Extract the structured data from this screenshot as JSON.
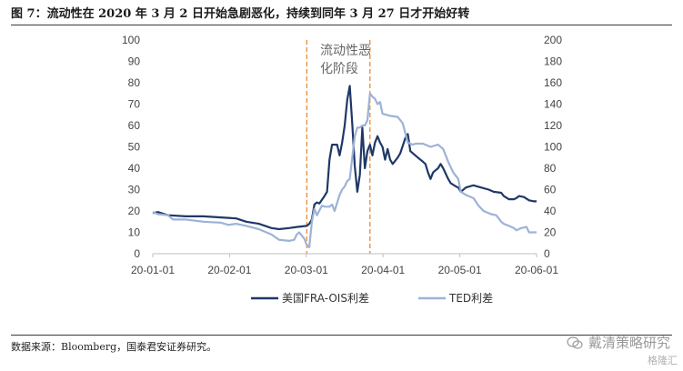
{
  "figure": {
    "title": "图 7：流动性在 2020 年 3 月 2 日开始急剧恶化，持续到同年 3 月 27 日才开始好转",
    "source": "数据来源：Bloomberg，国泰君安证券研究。",
    "watermark": "戴清策略研究",
    "watermark_sub": "格隆汇"
  },
  "chart_data": {
    "type": "line",
    "title": "",
    "xlabel": "",
    "ylabel_left": "",
    "ylabel_right": "",
    "x_ticks": [
      "20-01-01",
      "20-02-01",
      "20-03-01",
      "20-04-01",
      "20-05-01",
      "20-06-01"
    ],
    "x_range": [
      "2020-01-01",
      "2020-06-01"
    ],
    "y_left": {
      "min": 0,
      "max": 100,
      "ticks": [
        0,
        10,
        20,
        30,
        40,
        50,
        60,
        70,
        80,
        90,
        100
      ]
    },
    "y_right": {
      "min": 0,
      "max": 200,
      "ticks": [
        0,
        20,
        40,
        60,
        80,
        100,
        120,
        140,
        160,
        180,
        200
      ]
    },
    "legend_position": "bottom",
    "annotation": {
      "lines": [
        "流动性恶",
        "化阶段"
      ]
    },
    "vlines": [
      {
        "date": "2020-03-02",
        "color": "#f0913a"
      },
      {
        "date": "2020-03-27",
        "color": "#f0913a"
      }
    ],
    "series": [
      {
        "name": "美国FRA-OIS利差",
        "axis": "left",
        "color": "#1f3867",
        "points": [
          [
            "2020-01-01",
            19
          ],
          [
            "2020-01-03",
            19.5
          ],
          [
            "2020-01-07",
            18
          ],
          [
            "2020-01-14",
            17.5
          ],
          [
            "2020-01-21",
            17.5
          ],
          [
            "2020-01-28",
            17
          ],
          [
            "2020-02-03",
            16.5
          ],
          [
            "2020-02-07",
            15
          ],
          [
            "2020-02-12",
            14
          ],
          [
            "2020-02-17",
            12
          ],
          [
            "2020-02-20",
            11.5
          ],
          [
            "2020-02-24",
            12
          ],
          [
            "2020-02-27",
            12.5
          ],
          [
            "2020-03-02",
            13
          ],
          [
            "2020-03-03",
            14
          ],
          [
            "2020-03-04",
            16
          ],
          [
            "2020-03-05",
            23
          ],
          [
            "2020-03-06",
            24
          ],
          [
            "2020-03-07",
            23.5
          ],
          [
            "2020-03-09",
            27
          ],
          [
            "2020-03-10",
            29
          ],
          [
            "2020-03-11",
            44
          ],
          [
            "2020-03-12",
            51
          ],
          [
            "2020-03-13",
            51
          ],
          [
            "2020-03-14",
            51
          ],
          [
            "2020-03-15",
            46
          ],
          [
            "2020-03-16",
            52
          ],
          [
            "2020-03-17",
            60
          ],
          [
            "2020-03-18",
            72
          ],
          [
            "2020-03-19",
            78.5
          ],
          [
            "2020-03-20",
            61
          ],
          [
            "2020-03-21",
            41
          ],
          [
            "2020-03-22",
            29
          ],
          [
            "2020-03-23",
            37
          ],
          [
            "2020-03-24",
            59
          ],
          [
            "2020-03-25",
            40
          ],
          [
            "2020-03-26",
            48
          ],
          [
            "2020-03-27",
            51
          ],
          [
            "2020-03-28",
            46
          ],
          [
            "2020-03-29",
            52
          ],
          [
            "2020-03-30",
            55
          ],
          [
            "2020-03-31",
            52
          ],
          [
            "2020-04-01",
            50
          ],
          [
            "2020-04-02",
            44
          ],
          [
            "2020-04-03",
            49
          ],
          [
            "2020-04-04",
            44
          ],
          [
            "2020-04-05",
            42
          ],
          [
            "2020-04-07",
            45
          ],
          [
            "2020-04-08",
            47
          ],
          [
            "2020-04-10",
            54
          ],
          [
            "2020-04-11",
            56
          ],
          [
            "2020-04-12",
            48
          ],
          [
            "2020-04-14",
            46
          ],
          [
            "2020-04-15",
            45
          ],
          [
            "2020-04-17",
            43
          ],
          [
            "2020-04-18",
            42
          ],
          [
            "2020-04-19",
            38
          ],
          [
            "2020-04-20",
            35
          ],
          [
            "2020-04-21",
            38
          ],
          [
            "2020-04-22",
            39
          ],
          [
            "2020-04-23",
            40
          ],
          [
            "2020-04-24",
            42
          ],
          [
            "2020-04-25",
            40
          ],
          [
            "2020-04-27",
            35
          ],
          [
            "2020-04-28",
            33
          ],
          [
            "2020-04-30",
            31.5
          ],
          [
            "2020-05-01",
            31
          ],
          [
            "2020-05-02",
            29
          ],
          [
            "2020-05-04",
            31
          ],
          [
            "2020-05-07",
            32
          ],
          [
            "2020-05-10",
            31
          ],
          [
            "2020-05-13",
            30
          ],
          [
            "2020-05-15",
            29
          ],
          [
            "2020-05-18",
            28.5
          ],
          [
            "2020-05-19",
            27
          ],
          [
            "2020-05-21",
            25.5
          ],
          [
            "2020-05-23",
            25.5
          ],
          [
            "2020-05-24",
            26
          ],
          [
            "2020-05-25",
            27
          ],
          [
            "2020-05-27",
            26.5
          ],
          [
            "2020-05-29",
            25
          ],
          [
            "2020-05-31",
            24.5
          ],
          [
            "2020-06-01",
            24.5
          ]
        ]
      },
      {
        "name": "TED利差",
        "axis": "right",
        "color": "#9db2d6",
        "points": [
          [
            "2020-01-01",
            39
          ],
          [
            "2020-01-03",
            37
          ],
          [
            "2020-01-07",
            36
          ],
          [
            "2020-01-09",
            32
          ],
          [
            "2020-01-14",
            32
          ],
          [
            "2020-01-21",
            30
          ],
          [
            "2020-01-28",
            29
          ],
          [
            "2020-01-31",
            27
          ],
          [
            "2020-02-03",
            28
          ],
          [
            "2020-02-07",
            26
          ],
          [
            "2020-02-12",
            23
          ],
          [
            "2020-02-17",
            18
          ],
          [
            "2020-02-20",
            13
          ],
          [
            "2020-02-24",
            12
          ],
          [
            "2020-02-26",
            13
          ],
          [
            "2020-02-27",
            18
          ],
          [
            "2020-02-28",
            20
          ],
          [
            "2020-03-01",
            14
          ],
          [
            "2020-03-02",
            8
          ],
          [
            "2020-03-03",
            6
          ],
          [
            "2020-03-04",
            30
          ],
          [
            "2020-03-05",
            42
          ],
          [
            "2020-03-06",
            36
          ],
          [
            "2020-03-08",
            45
          ],
          [
            "2020-03-09",
            44
          ],
          [
            "2020-03-11",
            44
          ],
          [
            "2020-03-12",
            46
          ],
          [
            "2020-03-13",
            40
          ],
          [
            "2020-03-15",
            55
          ],
          [
            "2020-03-16",
            60
          ],
          [
            "2020-03-17",
            63
          ],
          [
            "2020-03-18",
            68
          ],
          [
            "2020-03-19",
            70
          ],
          [
            "2020-03-20",
            90
          ],
          [
            "2020-03-21",
            110
          ],
          [
            "2020-03-22",
            118
          ],
          [
            "2020-03-23",
            118
          ],
          [
            "2020-03-24",
            120
          ],
          [
            "2020-03-25",
            120
          ],
          [
            "2020-03-26",
            125
          ],
          [
            "2020-03-27",
            150
          ],
          [
            "2020-03-28",
            147
          ],
          [
            "2020-03-29",
            145
          ],
          [
            "2020-03-30",
            140
          ],
          [
            "2020-03-31",
            142
          ],
          [
            "2020-04-01",
            131
          ],
          [
            "2020-04-04",
            129
          ],
          [
            "2020-04-07",
            128
          ],
          [
            "2020-04-09",
            122
          ],
          [
            "2020-04-10",
            113
          ],
          [
            "2020-04-11",
            104
          ],
          [
            "2020-04-13",
            102
          ],
          [
            "2020-04-14",
            103
          ],
          [
            "2020-04-17",
            103
          ],
          [
            "2020-04-20",
            100
          ],
          [
            "2020-04-23",
            102
          ],
          [
            "2020-04-25",
            98
          ],
          [
            "2020-04-27",
            86
          ],
          [
            "2020-04-29",
            76
          ],
          [
            "2020-05-01",
            70
          ],
          [
            "2020-05-02",
            58
          ],
          [
            "2020-05-04",
            55
          ],
          [
            "2020-05-07",
            52
          ],
          [
            "2020-05-09",
            45
          ],
          [
            "2020-05-11",
            40
          ],
          [
            "2020-05-14",
            37
          ],
          [
            "2020-05-16",
            36
          ],
          [
            "2020-05-18",
            30
          ],
          [
            "2020-05-19",
            28
          ],
          [
            "2020-05-21",
            26
          ],
          [
            "2020-05-23",
            24
          ],
          [
            "2020-05-24",
            22
          ],
          [
            "2020-05-26",
            24
          ],
          [
            "2020-05-28",
            25
          ],
          [
            "2020-05-29",
            20
          ],
          [
            "2020-05-31",
            20
          ],
          [
            "2020-06-01",
            20
          ]
        ]
      }
    ]
  }
}
